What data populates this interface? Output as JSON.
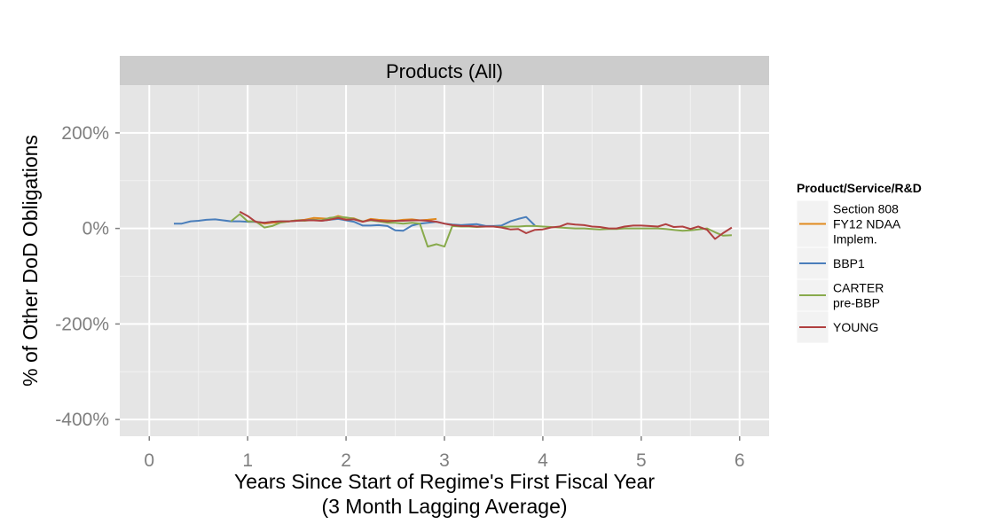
{
  "chart_data": {
    "type": "line",
    "facet_title": "Products (All)",
    "xlabel": "Years Since Start of Regime's First Fiscal Year",
    "xlabel_sub": "(3 Month Lagging Average)",
    "ylabel": "% of Other DoD Obligations",
    "xlim": [
      -0.3,
      6.3
    ],
    "ylim": [
      -435,
      300
    ],
    "x_ticks": [
      0,
      1,
      2,
      3,
      4,
      5,
      6
    ],
    "x_tick_labels": [
      "0",
      "1",
      "2",
      "3",
      "4",
      "5",
      "6"
    ],
    "y_ticks": [
      200,
      0,
      -200,
      -400
    ],
    "y_tick_labels": [
      "200%",
      "0%",
      "-200%",
      "-400%"
    ],
    "grid": true,
    "legend": {
      "title": "Product/Service/R&D",
      "placement": "right",
      "items": [
        {
          "lines": [
            "Section 808",
            "FY12 NDAA",
            "Implem."
          ],
          "color": "#e08a1e"
        },
        {
          "lines": [
            "BBP1"
          ],
          "color": "#4a7ebb"
        },
        {
          "lines": [
            "CARTER",
            "pre-BBP"
          ],
          "color": "#88aa4c"
        },
        {
          "lines": [
            "YOUNG"
          ],
          "color": "#b04040"
        }
      ]
    },
    "series": [
      {
        "name": "Section 808 FY12 NDAA Implem.",
        "color": "#e08a1e",
        "points": [
          [
            1.0,
            14
          ],
          [
            1.08,
            14
          ],
          [
            1.17,
            10
          ],
          [
            1.25,
            12
          ],
          [
            1.33,
            13
          ],
          [
            1.42,
            15
          ],
          [
            1.5,
            17
          ],
          [
            1.58,
            18
          ],
          [
            1.67,
            22
          ],
          [
            1.75,
            21
          ],
          [
            1.83,
            20
          ],
          [
            1.92,
            26
          ],
          [
            2.0,
            22
          ],
          [
            2.08,
            21
          ],
          [
            2.17,
            14
          ],
          [
            2.25,
            20
          ],
          [
            2.33,
            18
          ],
          [
            2.42,
            17
          ],
          [
            2.5,
            16
          ],
          [
            2.58,
            18
          ],
          [
            2.67,
            19
          ],
          [
            2.75,
            17
          ],
          [
            2.83,
            18
          ],
          [
            2.92,
            20
          ]
        ]
      },
      {
        "name": "BBP1",
        "color": "#4a7ebb",
        "points": [
          [
            0.25,
            10
          ],
          [
            0.33,
            10
          ],
          [
            0.42,
            15
          ],
          [
            0.5,
            16
          ],
          [
            0.58,
            18
          ],
          [
            0.67,
            19
          ],
          [
            0.75,
            17
          ],
          [
            0.83,
            15
          ],
          [
            0.92,
            15
          ],
          [
            1.0,
            14
          ],
          [
            1.08,
            14
          ],
          [
            1.17,
            12
          ],
          [
            1.25,
            14
          ],
          [
            1.33,
            15
          ],
          [
            1.42,
            15
          ],
          [
            1.5,
            16
          ],
          [
            1.58,
            17
          ],
          [
            1.67,
            18
          ],
          [
            1.75,
            16
          ],
          [
            1.83,
            18
          ],
          [
            1.92,
            20
          ],
          [
            2.0,
            17
          ],
          [
            2.08,
            14
          ],
          [
            2.17,
            6
          ],
          [
            2.25,
            6
          ],
          [
            2.33,
            7
          ],
          [
            2.42,
            5
          ],
          [
            2.5,
            -4
          ],
          [
            2.58,
            -5
          ],
          [
            2.67,
            6
          ],
          [
            2.75,
            10
          ],
          [
            2.83,
            12
          ],
          [
            2.92,
            14
          ],
          [
            3.0,
            10
          ],
          [
            3.08,
            8
          ],
          [
            3.17,
            7
          ],
          [
            3.25,
            8
          ],
          [
            3.33,
            9
          ],
          [
            3.42,
            5
          ],
          [
            3.5,
            5
          ],
          [
            3.58,
            6
          ],
          [
            3.67,
            15
          ],
          [
            3.75,
            20
          ],
          [
            3.83,
            24
          ],
          [
            3.92,
            6
          ]
        ]
      },
      {
        "name": "CARTER pre-BBP",
        "color": "#88aa4c",
        "points": [
          [
            0.83,
            15
          ],
          [
            0.92,
            30
          ],
          [
            1.0,
            15
          ],
          [
            1.08,
            15
          ],
          [
            1.17,
            2
          ],
          [
            1.25,
            5
          ],
          [
            1.33,
            12
          ],
          [
            1.42,
            15
          ],
          [
            1.5,
            17
          ],
          [
            1.58,
            16
          ],
          [
            1.67,
            18
          ],
          [
            1.75,
            17
          ],
          [
            1.83,
            22
          ],
          [
            1.92,
            24
          ],
          [
            2.0,
            23
          ],
          [
            2.08,
            20
          ],
          [
            2.17,
            15
          ],
          [
            2.25,
            17
          ],
          [
            2.33,
            15
          ],
          [
            2.42,
            12
          ],
          [
            2.5,
            12
          ],
          [
            2.58,
            10
          ],
          [
            2.67,
            12
          ],
          [
            2.75,
            10
          ],
          [
            2.83,
            -38
          ],
          [
            2.92,
            -33
          ],
          [
            3.0,
            -38
          ],
          [
            3.08,
            5
          ],
          [
            3.17,
            4
          ],
          [
            3.25,
            4
          ],
          [
            3.33,
            3
          ],
          [
            3.42,
            4
          ],
          [
            3.5,
            4
          ],
          [
            3.58,
            3
          ],
          [
            3.67,
            4
          ],
          [
            3.75,
            4
          ],
          [
            3.83,
            5
          ],
          [
            3.92,
            5
          ],
          [
            4.0,
            4
          ],
          [
            4.08,
            3
          ],
          [
            4.17,
            2
          ],
          [
            4.25,
            1
          ],
          [
            4.33,
            0
          ],
          [
            4.42,
            0
          ],
          [
            4.5,
            -1
          ],
          [
            4.58,
            -2
          ],
          [
            4.67,
            -1
          ],
          [
            4.75,
            -1
          ],
          [
            4.83,
            0
          ],
          [
            4.92,
            0
          ],
          [
            5.0,
            0
          ],
          [
            5.08,
            0
          ],
          [
            5.17,
            0
          ],
          [
            5.25,
            -1
          ],
          [
            5.33,
            -3
          ],
          [
            5.42,
            -5
          ],
          [
            5.5,
            -4
          ],
          [
            5.58,
            -2
          ],
          [
            5.67,
            0
          ],
          [
            5.75,
            -8
          ],
          [
            5.83,
            -15
          ],
          [
            5.92,
            -14
          ]
        ]
      },
      {
        "name": "YOUNG",
        "color": "#b04040",
        "points": [
          [
            0.92,
            35
          ],
          [
            1.0,
            26
          ],
          [
            1.08,
            14
          ],
          [
            1.17,
            12
          ],
          [
            1.25,
            14
          ],
          [
            1.33,
            15
          ],
          [
            1.42,
            15
          ],
          [
            1.5,
            16
          ],
          [
            1.58,
            17
          ],
          [
            1.67,
            17
          ],
          [
            1.75,
            16
          ],
          [
            1.83,
            18
          ],
          [
            1.92,
            22
          ],
          [
            2.0,
            18
          ],
          [
            2.08,
            19
          ],
          [
            2.17,
            14
          ],
          [
            2.25,
            18
          ],
          [
            2.33,
            16
          ],
          [
            2.42,
            15
          ],
          [
            2.5,
            16
          ],
          [
            2.58,
            16
          ],
          [
            2.67,
            17
          ],
          [
            2.75,
            17
          ],
          [
            2.83,
            16
          ],
          [
            2.92,
            14
          ],
          [
            3.0,
            10
          ],
          [
            3.08,
            7
          ],
          [
            3.17,
            5
          ],
          [
            3.25,
            5
          ],
          [
            3.33,
            4
          ],
          [
            3.42,
            4
          ],
          [
            3.5,
            4
          ],
          [
            3.58,
            2
          ],
          [
            3.67,
            -2
          ],
          [
            3.75,
            -1
          ],
          [
            3.83,
            -10
          ],
          [
            3.92,
            -3
          ],
          [
            4.0,
            -2
          ],
          [
            4.08,
            2
          ],
          [
            4.17,
            4
          ],
          [
            4.25,
            10
          ],
          [
            4.33,
            8
          ],
          [
            4.42,
            7
          ],
          [
            4.5,
            4
          ],
          [
            4.58,
            3
          ],
          [
            4.67,
            0
          ],
          [
            4.75,
            0
          ],
          [
            4.83,
            4
          ],
          [
            4.92,
            6
          ],
          [
            5.0,
            6
          ],
          [
            5.08,
            5
          ],
          [
            5.17,
            4
          ],
          [
            5.25,
            9
          ],
          [
            5.33,
            3
          ],
          [
            5.42,
            4
          ],
          [
            5.5,
            -1
          ],
          [
            5.58,
            4
          ],
          [
            5.67,
            -3
          ],
          [
            5.75,
            -22
          ],
          [
            5.83,
            -10
          ],
          [
            5.92,
            2
          ]
        ]
      }
    ]
  }
}
